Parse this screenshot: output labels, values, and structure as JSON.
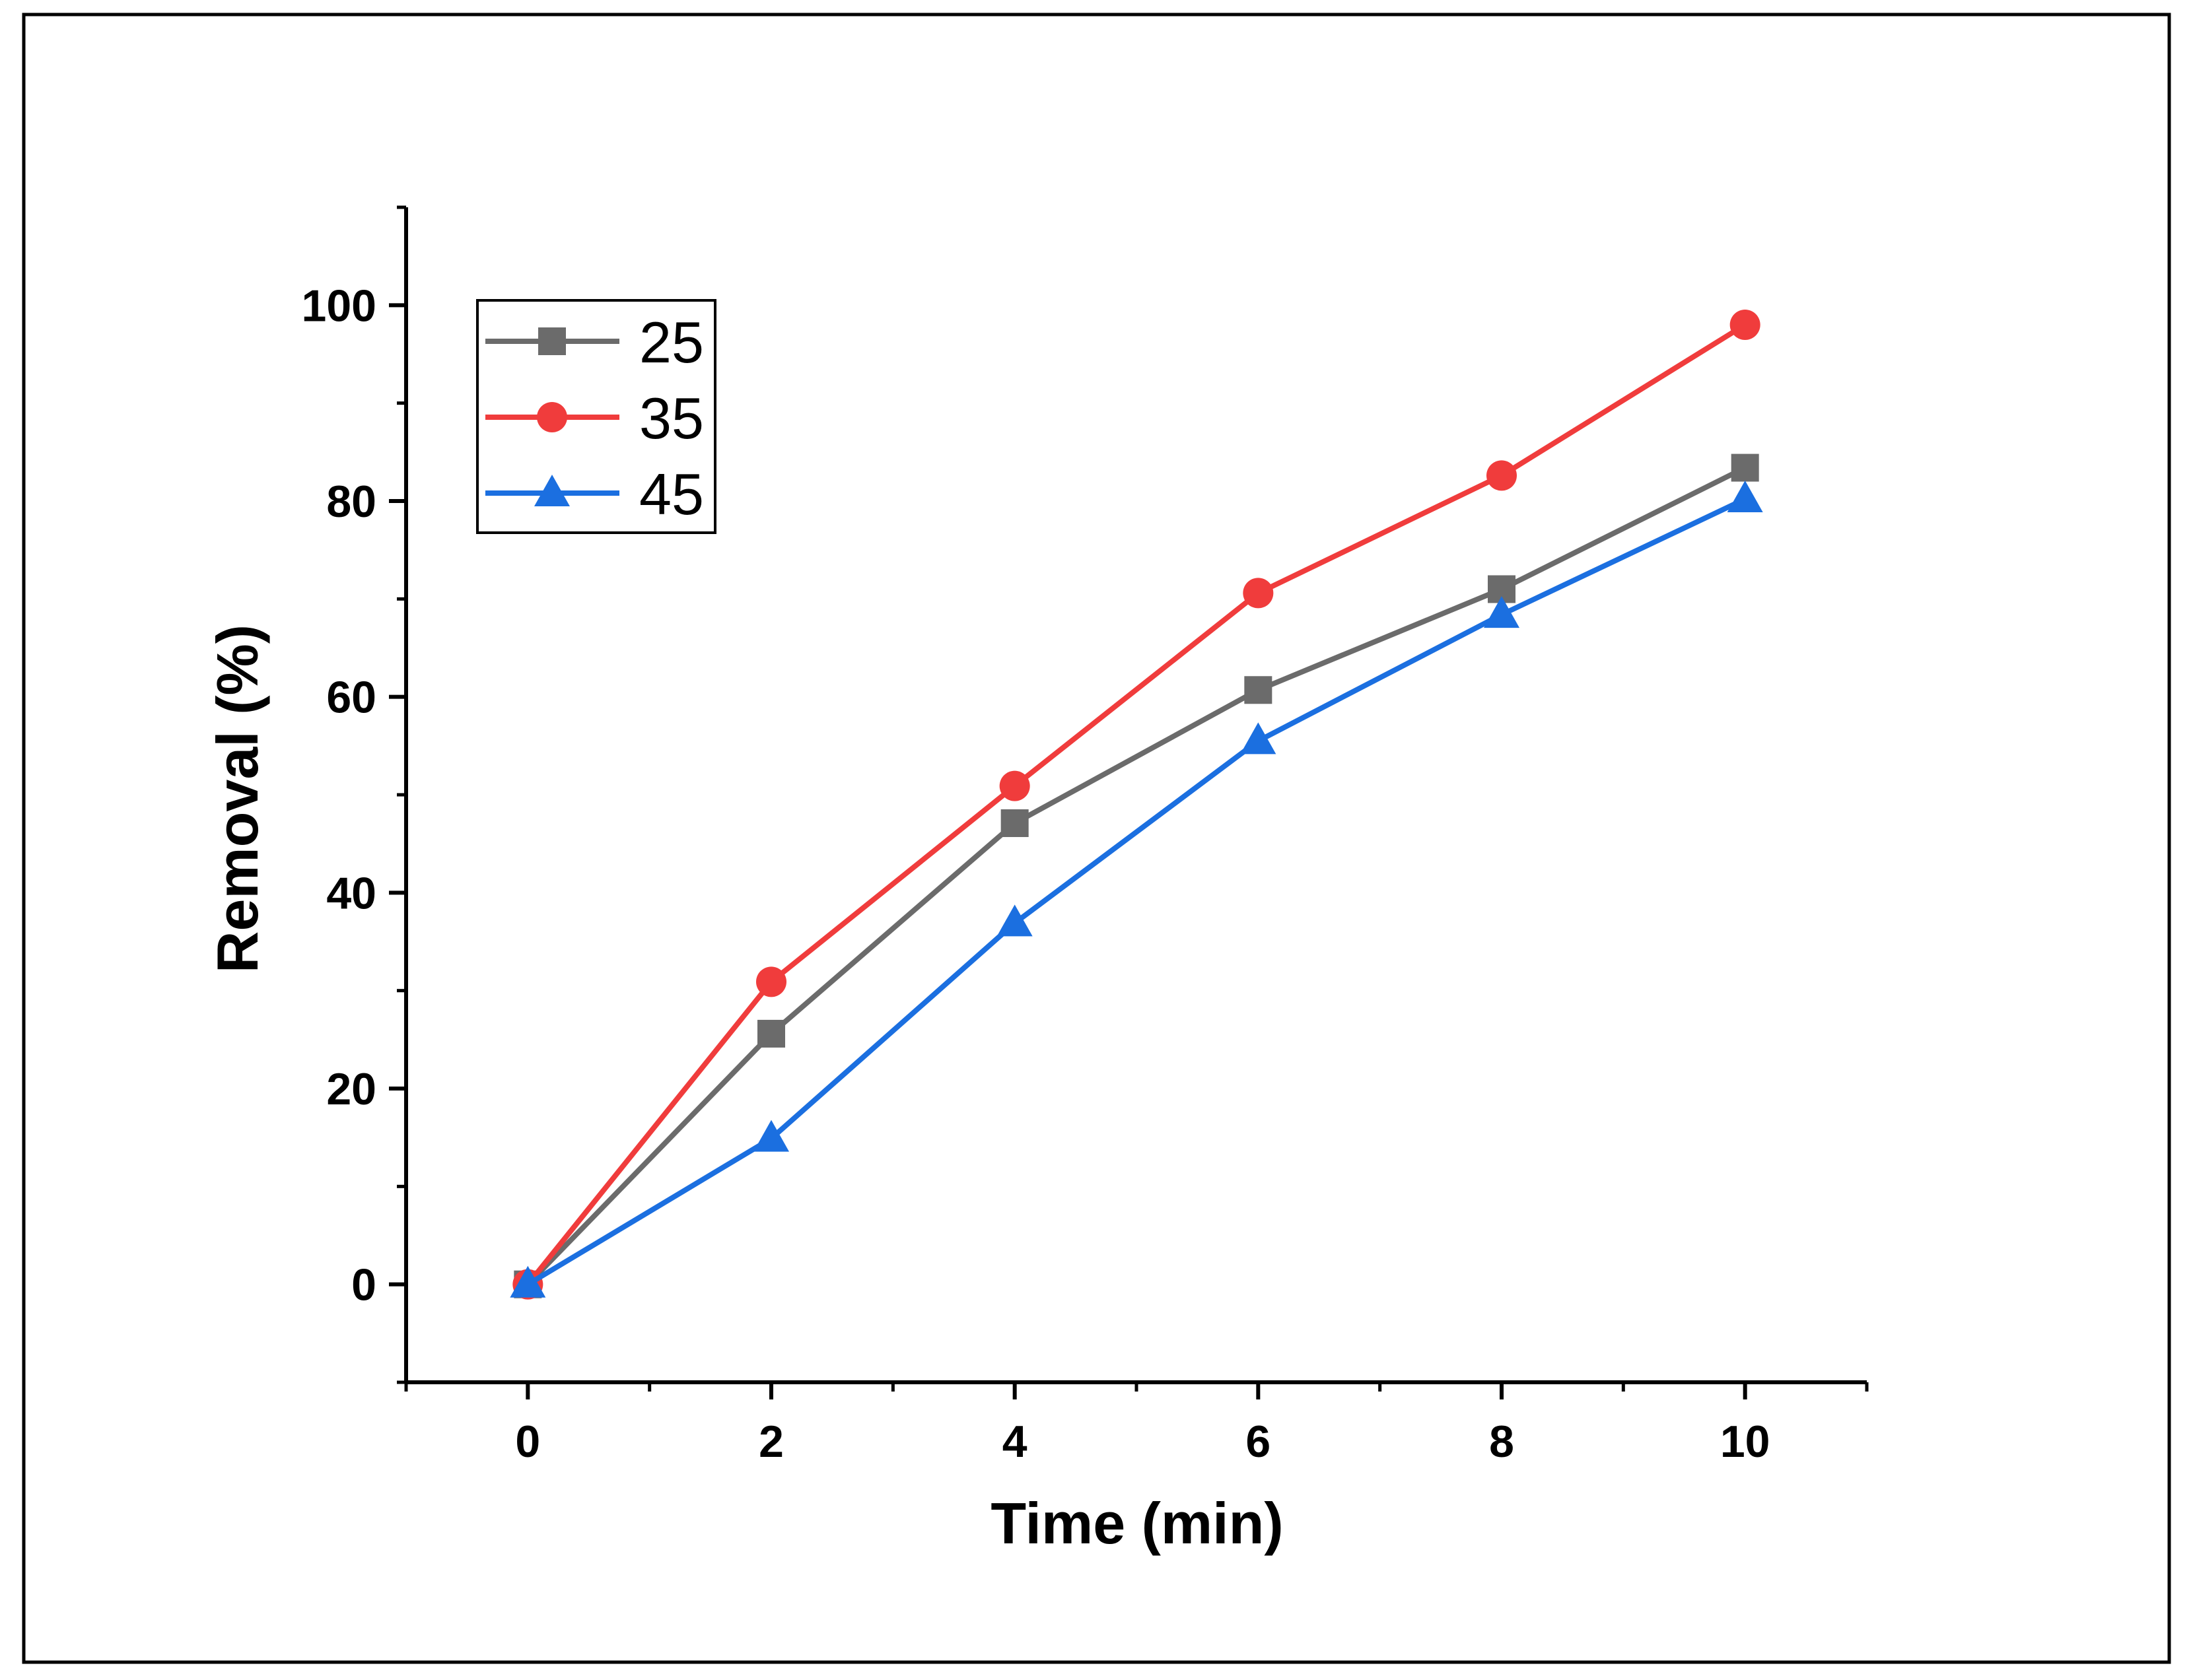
{
  "chart_data": {
    "type": "line",
    "title": "",
    "xlabel": "Time (min)",
    "ylabel": "Removal (%)",
    "xlim": [
      -1,
      11
    ],
    "ylim": [
      -10,
      110
    ],
    "xticks": [
      0,
      2,
      4,
      6,
      8,
      10
    ],
    "xtick_labels": [
      "0",
      "2",
      "4",
      "6",
      "8",
      "10"
    ],
    "yticks": [
      0,
      20,
      40,
      60,
      80,
      100
    ],
    "ytick_labels": [
      "0",
      "20",
      "40",
      "60",
      "80",
      "100"
    ],
    "grid": false,
    "legend_position": "top-left",
    "x": [
      0,
      2,
      4,
      6,
      8,
      10
    ],
    "series": [
      {
        "name": "25",
        "color": "#6b6b6b",
        "marker": "square",
        "values": [
          0,
          25.6,
          47.1,
          60.7,
          71.0,
          83.4
        ]
      },
      {
        "name": "35",
        "color": "#f03c3c",
        "marker": "circle",
        "values": [
          0,
          30.9,
          50.9,
          70.6,
          82.6,
          98.0
        ]
      },
      {
        "name": "45",
        "color": "#1b6fe0",
        "marker": "triangle",
        "values": [
          0,
          14.9,
          36.9,
          55.5,
          68.4,
          80.2
        ]
      }
    ]
  }
}
